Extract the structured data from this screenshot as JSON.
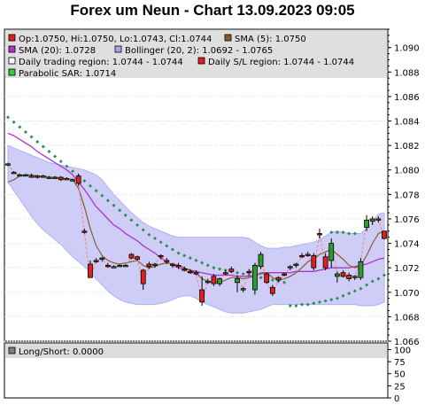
{
  "title": "Forex um Neun - Chart 13.09.2023 09:05",
  "colors": {
    "band_fill": "#c8c8f8",
    "band_edge": "#a8a8f0",
    "sma5": "#8b5a2b",
    "sma20": "#b030d0",
    "sar": "#2e8b57",
    "up_candle": "#2e9b2e",
    "down_candle": "#e02020",
    "legend_bg": "#dcdcdc",
    "grid": "#d8d8d8"
  },
  "legend": [
    {
      "text": "Op:1.0750, Hi:1.0750, Lo:1.0743, Cl:1.0744",
      "color": "#e02020",
      "icon": "red-square-icon"
    },
    {
      "text": "SMA (5): 1.0750",
      "color": "#8b5a2b",
      "icon": "brown-square-icon"
    },
    {
      "text": "SMA (20): 1.0728",
      "color": "#b030d0",
      "icon": "purple-square-icon"
    },
    {
      "text": "Bollinger (20, 2): 1.0692 - 1.0765",
      "color": "#a8a8f0",
      "icon": "lavender-square-icon"
    },
    {
      "text": "Daily trading region: 1.0744 - 1.0744",
      "color": "#ffffff",
      "icon": "white-square-icon"
    },
    {
      "text": "Daily S/L region: 1.0744 - 1.0744",
      "color": "#e02020",
      "icon": "red-square-icon"
    },
    {
      "text": "Parabolic SAR: 1.0714",
      "color": "#2ecc40",
      "icon": "green-square-icon"
    }
  ],
  "indicator_legend": {
    "text": "Long/Short: 0.0000",
    "color": "#808080",
    "icon": "gray-square-icon"
  },
  "chart_data": [
    {
      "type": "candlestick",
      "ylim": [
        1.066,
        1.0915
      ],
      "y_ticks": [
        "1.090",
        "1.088",
        "1.086",
        "1.084",
        "1.082",
        "1.080",
        "1.078",
        "1.076",
        "1.074",
        "1.072",
        "1.070",
        "1.068",
        "1.066"
      ],
      "grid": true,
      "candles": [
        {
          "o": 1.0804,
          "h": 1.0806,
          "l": 1.0803,
          "c": 1.0805
        },
        {
          "o": 1.0798,
          "h": 1.0799,
          "l": 1.0797,
          "c": 1.0798
        },
        {
          "o": 1.0796,
          "h": 1.0797,
          "l": 1.0795,
          "c": 1.0796
        },
        {
          "o": 1.0796,
          "h": 1.0797,
          "l": 1.0795,
          "c": 1.0796
        },
        {
          "o": 1.0795,
          "h": 1.0797,
          "l": 1.0794,
          "c": 1.0795
        },
        {
          "o": 1.0795,
          "h": 1.0796,
          "l": 1.0793,
          "c": 1.0794
        },
        {
          "o": 1.0795,
          "h": 1.0796,
          "l": 1.0794,
          "c": 1.0795
        },
        {
          "o": 1.0794,
          "h": 1.0795,
          "l": 1.0793,
          "c": 1.0794
        },
        {
          "o": 1.0794,
          "h": 1.0795,
          "l": 1.0793,
          "c": 1.0794
        },
        {
          "o": 1.0794,
          "h": 1.0795,
          "l": 1.0791,
          "c": 1.0792
        },
        {
          "o": 1.0793,
          "h": 1.0794,
          "l": 1.0792,
          "c": 1.0793
        },
        {
          "o": 1.0792,
          "h": 1.0793,
          "l": 1.0791,
          "c": 1.0792
        },
        {
          "o": 1.0795,
          "h": 1.0797,
          "l": 1.0787,
          "c": 1.0789
        },
        {
          "o": 1.075,
          "h": 1.0752,
          "l": 1.0748,
          "c": 1.0749
        },
        {
          "o": 1.0723,
          "h": 1.0726,
          "l": 1.0713,
          "c": 1.0712
        },
        {
          "o": 1.0726,
          "h": 1.0728,
          "l": 1.0724,
          "c": 1.0725
        },
        {
          "o": 1.0727,
          "h": 1.0729,
          "l": 1.0725,
          "c": 1.0728
        },
        {
          "o": 1.0722,
          "h": 1.0724,
          "l": 1.072,
          "c": 1.0721
        },
        {
          "o": 1.0721,
          "h": 1.0722,
          "l": 1.072,
          "c": 1.0721
        },
        {
          "o": 1.0722,
          "h": 1.0723,
          "l": 1.0721,
          "c": 1.0722
        },
        {
          "o": 1.0722,
          "h": 1.0723,
          "l": 1.0721,
          "c": 1.0722
        },
        {
          "o": 1.0731,
          "h": 1.0732,
          "l": 1.0727,
          "c": 1.0728
        },
        {
          "o": 1.0729,
          "h": 1.073,
          "l": 1.0726,
          "c": 1.0727
        },
        {
          "o": 1.0718,
          "h": 1.0719,
          "l": 1.0702,
          "c": 1.0707
        },
        {
          "o": 1.0723,
          "h": 1.0725,
          "l": 1.0719,
          "c": 1.0721
        },
        {
          "o": 1.0722,
          "h": 1.0724,
          "l": 1.072,
          "c": 1.0723
        },
        {
          "o": 1.073,
          "h": 1.0731,
          "l": 1.0727,
          "c": 1.0729
        },
        {
          "o": 1.0726,
          "h": 1.0728,
          "l": 1.0723,
          "c": 1.0725
        },
        {
          "o": 1.0723,
          "h": 1.0724,
          "l": 1.072,
          "c": 1.0722
        },
        {
          "o": 1.0722,
          "h": 1.0724,
          "l": 1.0719,
          "c": 1.0721
        },
        {
          "o": 1.0719,
          "h": 1.0721,
          "l": 1.0717,
          "c": 1.0718
        },
        {
          "o": 1.0717,
          "h": 1.0719,
          "l": 1.0715,
          "c": 1.0716
        },
        {
          "o": 1.0716,
          "h": 1.0718,
          "l": 1.0714,
          "c": 1.0715
        },
        {
          "o": 1.0702,
          "h": 1.0713,
          "l": 1.0689,
          "c": 1.0692
        },
        {
          "o": 1.0709,
          "h": 1.0711,
          "l": 1.0707,
          "c": 1.0709
        },
        {
          "o": 1.0713,
          "h": 1.0715,
          "l": 1.0705,
          "c": 1.0707
        },
        {
          "o": 1.0707,
          "h": 1.0712,
          "l": 1.0705,
          "c": 1.0711
        },
        {
          "o": 1.0716,
          "h": 1.0718,
          "l": 1.0714,
          "c": 1.0715
        },
        {
          "o": 1.0719,
          "h": 1.0721,
          "l": 1.0716,
          "c": 1.0717
        },
        {
          "o": 1.0708,
          "h": 1.0714,
          "l": 1.07,
          "c": 1.0711
        },
        {
          "o": 1.0702,
          "h": 1.0704,
          "l": 1.07,
          "c": 1.0703
        },
        {
          "o": 1.0717,
          "h": 1.0719,
          "l": 1.0715,
          "c": 1.0716
        },
        {
          "o": 1.0702,
          "h": 1.0724,
          "l": 1.0698,
          "c": 1.0722
        },
        {
          "o": 1.0721,
          "h": 1.0733,
          "l": 1.0719,
          "c": 1.0731
        },
        {
          "o": 1.0715,
          "h": 1.0716,
          "l": 1.0707,
          "c": 1.0708
        },
        {
          "o": 1.0704,
          "h": 1.0706,
          "l": 1.0697,
          "c": 1.0699
        },
        {
          "o": 1.0712,
          "h": 1.0713,
          "l": 1.0709,
          "c": 1.071
        },
        {
          "o": 1.0715,
          "h": 1.0716,
          "l": 1.0713,
          "c": 1.0714
        },
        {
          "o": 1.072,
          "h": 1.0722,
          "l": 1.0718,
          "c": 1.0721
        },
        {
          "o": 1.0722,
          "h": 1.0724,
          "l": 1.072,
          "c": 1.0723
        },
        {
          "o": 1.073,
          "h": 1.0732,
          "l": 1.0728,
          "c": 1.0729
        },
        {
          "o": 1.0731,
          "h": 1.0733,
          "l": 1.0729,
          "c": 1.073
        },
        {
          "o": 1.073,
          "h": 1.0732,
          "l": 1.0718,
          "c": 1.072
        },
        {
          "o": 1.0748,
          "h": 1.0752,
          "l": 1.0744,
          "c": 1.0747
        },
        {
          "o": 1.0729,
          "h": 1.0732,
          "l": 1.0718,
          "c": 1.072
        },
        {
          "o": 1.0726,
          "h": 1.0744,
          "l": 1.072,
          "c": 1.074
        },
        {
          "o": 1.0713,
          "h": 1.0717,
          "l": 1.0708,
          "c": 1.0715
        },
        {
          "o": 1.0716,
          "h": 1.0718,
          "l": 1.0712,
          "c": 1.0713
        },
        {
          "o": 1.0714,
          "h": 1.0716,
          "l": 1.0709,
          "c": 1.0711
        },
        {
          "o": 1.0712,
          "h": 1.0714,
          "l": 1.071,
          "c": 1.0713
        },
        {
          "o": 1.0712,
          "h": 1.0728,
          "l": 1.071,
          "c": 1.0725
        },
        {
          "o": 1.0753,
          "h": 1.0763,
          "l": 1.075,
          "c": 1.0759
        },
        {
          "o": 1.0758,
          "h": 1.0762,
          "l": 1.0755,
          "c": 1.076
        },
        {
          "o": 1.076,
          "h": 1.0762,
          "l": 1.0757,
          "c": 1.0759
        },
        {
          "o": 1.075,
          "h": 1.075,
          "l": 1.0743,
          "c": 1.0744
        }
      ],
      "sma5": [
        1.079,
        1.0792,
        1.0795,
        1.0796,
        1.0796,
        1.0795,
        1.0795,
        1.0794,
        1.0794,
        1.0793,
        1.0793,
        1.0792,
        1.0785,
        1.077,
        1.0752,
        1.0738,
        1.073,
        1.0726,
        1.0724,
        1.0723,
        1.0724,
        1.0725,
        1.0726,
        1.0722,
        1.072,
        1.0721,
        1.0723,
        1.0724,
        1.0723,
        1.0722,
        1.072,
        1.0718,
        1.0716,
        1.0711,
        1.0709,
        1.0708,
        1.0708,
        1.071,
        1.0712,
        1.0712,
        1.0711,
        1.0712,
        1.0713,
        1.0716,
        1.0716,
        1.0712,
        1.071,
        1.0711,
        1.0713,
        1.0716,
        1.072,
        1.0725,
        1.0727,
        1.0731,
        1.0733,
        1.0735,
        1.0731,
        1.0727,
        1.0722,
        1.072,
        1.0722,
        1.073,
        1.074,
        1.0748,
        1.075
      ],
      "sma20": [
        1.083,
        1.0828,
        1.0825,
        1.0822,
        1.0819,
        1.0815,
        1.0812,
        1.0809,
        1.0806,
        1.0803,
        1.08,
        1.0796,
        1.079,
        1.0784,
        1.0777,
        1.077,
        1.0765,
        1.076,
        1.0755,
        1.0752,
        1.0748,
        1.0745,
        1.0742,
        1.0738,
        1.0735,
        1.0732,
        1.0728,
        1.0725,
        1.0722,
        1.072,
        1.0719,
        1.0718,
        1.0717,
        1.0716,
        1.0715,
        1.0714,
        1.0714,
        1.0714,
        1.0714,
        1.0713,
        1.0713,
        1.0713,
        1.0714,
        1.0715,
        1.0716,
        1.0716,
        1.0716,
        1.0716,
        1.0716,
        1.0717,
        1.0717,
        1.0717,
        1.0717,
        1.0718,
        1.0719,
        1.072,
        1.072,
        1.072,
        1.072,
        1.0721,
        1.0722,
        1.0723,
        1.0725,
        1.0727,
        1.0728
      ],
      "bb_upper": [
        1.082,
        1.0818,
        1.0816,
        1.0814,
        1.0812,
        1.081,
        1.0808,
        1.0806,
        1.0805,
        1.0804,
        1.0803,
        1.0802,
        1.0801,
        1.08,
        1.0798,
        1.0796,
        1.0792,
        1.0786,
        1.078,
        1.0775,
        1.077,
        1.0765,
        1.0761,
        1.0757,
        1.0754,
        1.0752,
        1.075,
        1.0748,
        1.0746,
        1.0745,
        1.0745,
        1.0745,
        1.0745,
        1.0745,
        1.0745,
        1.0745,
        1.0745,
        1.0745,
        1.0745,
        1.0745,
        1.0745,
        1.0744,
        1.0741,
        1.0738,
        1.0736,
        1.0736,
        1.0736,
        1.0737,
        1.0737,
        1.0738,
        1.0739,
        1.074,
        1.0741,
        1.0743,
        1.0746,
        1.0749,
        1.075,
        1.0749,
        1.0748,
        1.0748,
        1.0748,
        1.0752,
        1.0758,
        1.0764,
        1.0765
      ],
      "bb_lower": [
        1.079,
        1.0783,
        1.0776,
        1.0769,
        1.0762,
        1.0756,
        1.0751,
        1.0747,
        1.0743,
        1.0739,
        1.0734,
        1.0729,
        1.0725,
        1.0721,
        1.0716,
        1.0711,
        1.0706,
        1.0701,
        1.0697,
        1.0694,
        1.0692,
        1.0691,
        1.069,
        1.069,
        1.069,
        1.069,
        1.0691,
        1.0692,
        1.0694,
        1.0696,
        1.0697,
        1.0697,
        1.0695,
        1.0692,
        1.069,
        1.0688,
        1.0686,
        1.0684,
        1.0683,
        1.0683,
        1.0683,
        1.0684,
        1.0685,
        1.0686,
        1.0688,
        1.069,
        1.069,
        1.069,
        1.069,
        1.069,
        1.069,
        1.069,
        1.069,
        1.069,
        1.069,
        1.069,
        1.069,
        1.069,
        1.069,
        1.069,
        1.0689,
        1.0689,
        1.0689,
        1.069,
        1.0692
      ],
      "sar": [
        1.0843,
        1.0839,
        1.0835,
        1.0831,
        1.0827,
        1.0823,
        1.0819,
        1.0815,
        1.0811,
        1.0807,
        1.0803,
        1.0799,
        1.0795,
        1.0791,
        1.0787,
        1.0783,
        1.0779,
        1.0775,
        1.0771,
        1.0767,
        1.0763,
        1.0759,
        1.0755,
        1.0751,
        1.0747,
        1.0744,
        1.0741,
        1.0738,
        1.0735,
        1.0732,
        1.073,
        1.0728,
        1.0726,
        1.0724,
        1.0722,
        1.072,
        1.0719,
        1.0718,
        1.0717,
        1.0716,
        1.0715,
        1.0714,
        1.0713,
        1.0712,
        1.0711,
        1.071,
        1.0709,
        1.0708,
        1.0689,
        1.0689,
        1.069,
        1.069,
        1.0691,
        1.0692,
        1.0693,
        1.0694,
        1.0695,
        1.0697,
        1.0699,
        1.0701,
        1.0703,
        1.0706,
        1.0709,
        1.0711,
        1.0714
      ],
      "sar_alt": [
        null,
        null,
        null,
        null,
        null,
        null,
        null,
        null,
        null,
        null,
        null,
        null,
        null,
        null,
        null,
        null,
        null,
        null,
        null,
        null,
        null,
        null,
        null,
        null,
        null,
        null,
        null,
        null,
        null,
        null,
        null,
        null,
        null,
        null,
        null,
        null,
        null,
        null,
        null,
        null,
        null,
        null,
        null,
        null,
        null,
        null,
        null,
        null,
        null,
        null,
        null,
        null,
        null,
        null,
        null,
        1.0749,
        1.0749,
        1.0749,
        1.0748,
        1.0748,
        null,
        null,
        null,
        null,
        null
      ]
    },
    {
      "type": "indicator",
      "title": "Long/Short: 0.0000",
      "ylim": [
        0,
        110
      ],
      "y_ticks": [
        "100",
        "75",
        "50",
        "25",
        "0"
      ],
      "values": []
    }
  ]
}
